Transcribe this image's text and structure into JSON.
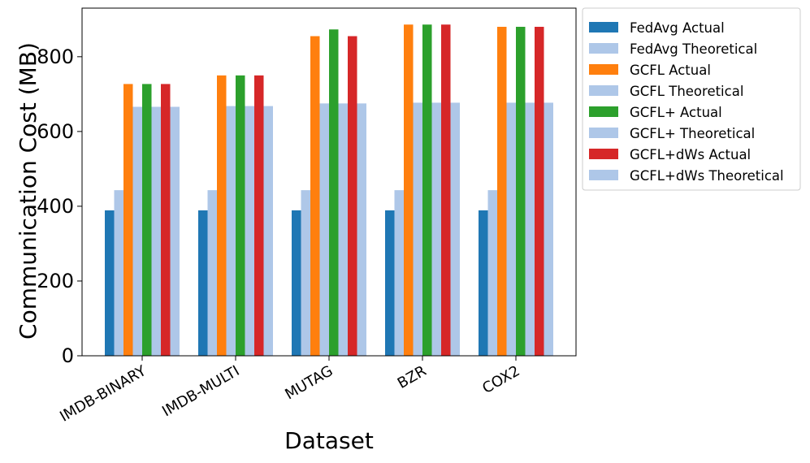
{
  "chart_data": {
    "type": "bar",
    "xlabel": "Dataset",
    "ylabel": "Communication Cost (MB)",
    "categories": [
      "IMDB-BINARY",
      "IMDB-MULTI",
      "MUTAG",
      "BZR",
      "COX2"
    ],
    "ylim": [
      0,
      930
    ],
    "yticks": [
      0,
      200,
      400,
      600,
      800
    ],
    "grid": false,
    "legend_position": "outside right",
    "series": [
      {
        "name": "FedAvg Actual",
        "color": "#1f77b4",
        "values": [
          389,
          389,
          389,
          389,
          389
        ]
      },
      {
        "name": "FedAvg Theoretical",
        "color": "#aec7e8",
        "values": [
          443,
          443,
          443,
          443,
          443
        ]
      },
      {
        "name": "GCFL Actual",
        "color": "#ff7f0e",
        "values": [
          727,
          750,
          855,
          886,
          880
        ]
      },
      {
        "name": "GCFL Theoretical",
        "color": "#aec7e8",
        "values": [
          666,
          668,
          675,
          677,
          677
        ]
      },
      {
        "name": "GCFL+ Actual",
        "color": "#2ca02c",
        "values": [
          727,
          750,
          873,
          886,
          880
        ]
      },
      {
        "name": "GCFL+ Theoretical",
        "color": "#aec7e8",
        "values": [
          666,
          668,
          675,
          677,
          677
        ]
      },
      {
        "name": "GCFL+dWs Actual",
        "color": "#d62728",
        "values": [
          727,
          750,
          855,
          886,
          880
        ]
      },
      {
        "name": "GCFL+dWs Theoretical",
        "color": "#aec7e8",
        "values": [
          666,
          668,
          675,
          677,
          677
        ]
      }
    ]
  }
}
